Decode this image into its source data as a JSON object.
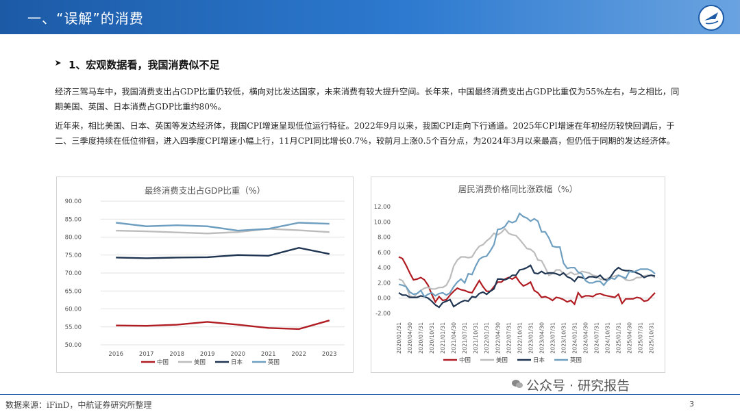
{
  "header": {
    "title": "一、“误解”的消费"
  },
  "section": {
    "heading": "1、宏观数据看，我国消费似不足"
  },
  "paragraphs": [
    "经济三驾马车中，我国消费支出占GDP比重仍较低，横向对比发达国家，未来消费有较大提升空间。长年来，中国最终消费支出占GDP比重仅为55%左右，与之相比，同期美国、英国、日本消费占GDP比重约80%。",
    "近年来，相比美国、日本、英国等发达经济体，我国CPI增速呈现低位运行特征。2022年9月以来，我国CPI走向下行通道。2025年CPI增速在年初经历较快回调后，于二、三季度持续在低位徘徊，进入四季度CPI增速小幅上行，11月CPI同比增长0.7%，较前月上涨0.5个百分点，为2024年3月以来最高，但仍低于同期的发达经济体。"
  ],
  "colors": {
    "china": "#b01c22",
    "usa": "#bcbcbc",
    "japan": "#1f3552",
    "uk": "#6f9fc0",
    "header": "#1c5aa6"
  },
  "chart_data": [
    {
      "type": "line",
      "title": "最终消费支出占GDP比重（%）",
      "x": [
        "2016",
        "2017",
        "2018",
        "2019",
        "2020",
        "2021",
        "2022",
        "2023"
      ],
      "ylim": [
        50,
        90
      ],
      "yticks": [
        "50.00",
        "55.00",
        "60.00",
        "65.00",
        "70.00",
        "75.00",
        "80.00",
        "85.00",
        "90.00"
      ],
      "grid": true,
      "legend": "bottom",
      "series": [
        {
          "name": "中国",
          "color": "#b01c22",
          "values": [
            55.4,
            55.3,
            55.6,
            56.4,
            55.6,
            54.7,
            54.4,
            56.8
          ]
        },
        {
          "name": "美国",
          "color": "#bcbcbc",
          "values": [
            81.8,
            81.6,
            81.3,
            81.0,
            81.4,
            82.3,
            81.9,
            81.4
          ]
        },
        {
          "name": "日本",
          "color": "#1f3552",
          "values": [
            74.3,
            74.1,
            74.3,
            74.4,
            75.0,
            74.8,
            77.0,
            75.3
          ]
        },
        {
          "name": "英国",
          "color": "#6f9fc0",
          "values": [
            84.0,
            83.0,
            83.3,
            83.0,
            81.8,
            82.3,
            84.0,
            83.7
          ]
        }
      ]
    },
    {
      "type": "line",
      "title": "居民消费价格同比涨跌幅（%）",
      "x": [
        "2020-01",
        "2020-02",
        "2020-03",
        "2020-04",
        "2020-05",
        "2020-06",
        "2020-07",
        "2020-08",
        "2020-09",
        "2020-10",
        "2020-11",
        "2020-12",
        "2021-01",
        "2021-02",
        "2021-03",
        "2021-04",
        "2021-05",
        "2021-06",
        "2021-07",
        "2021-08",
        "2021-09",
        "2021-10",
        "2021-11",
        "2021-12",
        "2022-01",
        "2022-02",
        "2022-03",
        "2022-04",
        "2022-05",
        "2022-06",
        "2022-07",
        "2022-08",
        "2022-09",
        "2022-10",
        "2022-11",
        "2022-12",
        "2023-01",
        "2023-02",
        "2023-03",
        "2023-04",
        "2023-05",
        "2023-06",
        "2023-07",
        "2023-08",
        "2023-09",
        "2023-10",
        "2023-11",
        "2023-12",
        "2024-01",
        "2024-02",
        "2024-03",
        "2024-04",
        "2024-05",
        "2024-06",
        "2024-07",
        "2024-08",
        "2024-09",
        "2024-10",
        "2024-11",
        "2024-12",
        "2025-01",
        "2025-02",
        "2025-03",
        "2025-04",
        "2025-05",
        "2025-06",
        "2025-07",
        "2025-08",
        "2025-09",
        "2025-10",
        "2025-11"
      ],
      "xticks": [
        "2020/01/31",
        "2020/04/30",
        "2020/07/31",
        "2020/10/31",
        "2021/01/31",
        "2021/04/30",
        "2021/07/31",
        "2021/10/31",
        "2022/01/31",
        "2022/04/30",
        "2022/07/31",
        "2022/10/31",
        "2023/01/31",
        "2023/04/30",
        "2023/07/31",
        "2023/10/31",
        "2024/01/31",
        "2024/04/30",
        "2024/07/31",
        "2024/10/31",
        "2025/01/31",
        "2025/04/30",
        "2025/07/31",
        "2025/10/31"
      ],
      "ylim": [
        -2,
        12
      ],
      "yticks": [
        "-2.00",
        "0.00",
        "2.00",
        "4.00",
        "6.00",
        "8.00",
        "10.00",
        "12.00"
      ],
      "grid": false,
      "legend": "bottom",
      "series": [
        {
          "name": "中国",
          "color": "#b01c22",
          "values": [
            5.4,
            5.2,
            4.3,
            3.3,
            2.4,
            2.5,
            2.7,
            2.4,
            1.7,
            0.5,
            -0.5,
            0.2,
            -0.3,
            -0.2,
            0.4,
            0.9,
            1.3,
            1.1,
            1.0,
            0.8,
            0.7,
            1.5,
            2.3,
            1.5,
            0.9,
            0.9,
            1.5,
            2.1,
            2.1,
            2.5,
            2.7,
            2.5,
            2.8,
            2.1,
            1.6,
            1.8,
            2.1,
            1.0,
            0.7,
            0.1,
            0.2,
            0.0,
            -0.3,
            0.1,
            0.0,
            -0.2,
            -0.5,
            -0.3,
            -0.8,
            0.7,
            0.1,
            0.3,
            0.3,
            0.2,
            0.5,
            0.6,
            0.4,
            0.3,
            0.2,
            0.1,
            0.5,
            -0.7,
            -0.1,
            -0.1,
            -0.1,
            0.1,
            0.0,
            -0.4,
            -0.3,
            0.2,
            0.7
          ]
        },
        {
          "name": "美国",
          "color": "#bcbcbc",
          "values": [
            2.5,
            2.3,
            1.5,
            0.3,
            0.1,
            0.6,
            1.0,
            1.3,
            1.4,
            1.2,
            1.2,
            1.4,
            1.4,
            1.7,
            2.6,
            4.2,
            5.0,
            5.4,
            5.4,
            5.3,
            5.4,
            6.2,
            6.8,
            7.0,
            7.5,
            7.9,
            8.5,
            8.3,
            8.6,
            9.1,
            8.5,
            8.3,
            8.2,
            7.7,
            7.1,
            6.5,
            6.4,
            6.0,
            5.0,
            4.9,
            4.0,
            3.0,
            3.2,
            3.7,
            3.7,
            3.2,
            3.1,
            3.4,
            3.1,
            3.2,
            3.5,
            3.4,
            3.3,
            3.0,
            2.9,
            2.5,
            2.4,
            2.6,
            2.7,
            2.9,
            3.0,
            2.8,
            2.4,
            2.3,
            2.4,
            2.7,
            2.7,
            2.9,
            3.0,
            3.0,
            2.7
          ]
        },
        {
          "name": "日本",
          "color": "#1f3552",
          "values": [
            0.7,
            0.4,
            0.4,
            0.1,
            0.1,
            0.1,
            0.3,
            0.2,
            0.0,
            -0.4,
            -0.9,
            -1.2,
            -0.6,
            -0.4,
            -0.2,
            -1.1,
            -0.8,
            -0.5,
            -0.3,
            -0.4,
            0.2,
            0.1,
            0.6,
            0.8,
            0.5,
            0.9,
            1.2,
            2.5,
            2.5,
            2.4,
            2.6,
            3.0,
            3.0,
            3.7,
            3.8,
            4.0,
            4.3,
            3.3,
            3.2,
            3.5,
            3.2,
            3.3,
            3.3,
            3.2,
            3.0,
            3.3,
            2.8,
            2.6,
            2.2,
            2.8,
            2.7,
            2.5,
            2.8,
            2.8,
            2.7,
            3.0,
            2.5,
            2.3,
            2.9,
            3.6,
            4.0,
            3.7,
            3.6,
            3.6,
            3.5,
            3.3,
            3.1,
            2.7,
            2.9,
            3.0,
            2.9
          ]
        },
        {
          "name": "英国",
          "color": "#6f9fc0",
          "values": [
            1.8,
            1.7,
            1.5,
            0.8,
            0.5,
            0.6,
            1.0,
            0.2,
            0.5,
            0.7,
            0.3,
            0.6,
            0.7,
            0.4,
            0.7,
            1.5,
            2.1,
            2.5,
            2.0,
            3.2,
            3.1,
            4.2,
            5.1,
            5.4,
            5.5,
            6.2,
            7.0,
            9.0,
            9.1,
            9.4,
            10.1,
            9.9,
            10.1,
            11.1,
            10.7,
            10.5,
            10.1,
            10.4,
            10.1,
            8.7,
            8.7,
            7.9,
            6.8,
            6.7,
            6.7,
            4.6,
            3.9,
            4.0,
            4.0,
            3.4,
            3.2,
            2.3,
            2.0,
            2.0,
            2.2,
            2.2,
            1.7,
            2.3,
            2.6,
            2.5,
            3.0,
            2.8,
            2.6,
            3.5,
            3.4,
            3.6,
            3.8,
            3.8,
            3.8,
            3.6,
            3.2
          ]
        }
      ]
    }
  ],
  "footer": {
    "source": "数据来源：iFinD，中航证券研究所整理",
    "page": "3",
    "watermark": "公众号 · 研究报告"
  }
}
